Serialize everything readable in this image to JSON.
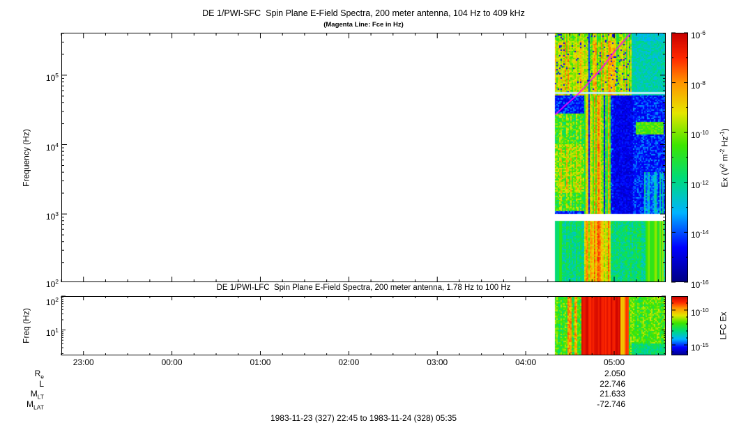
{
  "footer": "1983-11-23 (327) 22:45 to 1983-11-24 (328) 05:35",
  "palette": {
    "description": "rainbow spectrogram colormap, low to high",
    "stops": [
      [
        0.0,
        "#000082"
      ],
      [
        0.14,
        "#0000ff"
      ],
      [
        0.28,
        "#00b4ff"
      ],
      [
        0.42,
        "#00dc78"
      ],
      [
        0.55,
        "#3ce600"
      ],
      [
        0.68,
        "#e6e600"
      ],
      [
        0.8,
        "#ff9600"
      ],
      [
        0.9,
        "#ff2800"
      ],
      [
        1.0,
        "#c80000"
      ]
    ]
  },
  "chart_data": [
    {
      "type": "heatmap",
      "id": "sfc",
      "title": "DE 1/PWI-SFC  Spin Plane E-Field Spectra, 200 meter antenna, 104 Hz to 409 kHz",
      "subtitle": "(Magenta Line: Fce in Hz)",
      "ylabel": "Frequency (Hz)",
      "y_axis": {
        "scale": "log",
        "unit": "Hz",
        "min": 104,
        "max": 409000,
        "tick_exponents": [
          2,
          3,
          4,
          5
        ],
        "tick_labels": [
          "10^2",
          "10^3",
          "10^4",
          "10^5"
        ]
      },
      "x_axis": {
        "start_label": "22:45",
        "end_label": "05:35",
        "range_hours": [
          22.75,
          29.5833
        ],
        "tick_hours": [
          23,
          24,
          25,
          26,
          27,
          28,
          29
        ],
        "tick_labels": [
          "23:00",
          "00:00",
          "01:00",
          "02:00",
          "03:00",
          "04:00",
          "05:00"
        ],
        "minor_step_hours": 0.25
      },
      "colorbar": {
        "label_text": "Ex (V^2 m^-2 Hz^-1)",
        "label_parts": [
          [
            "t",
            "Ex (V"
          ],
          [
            "s",
            "2"
          ],
          [
            "t",
            " m"
          ],
          [
            "s",
            "-2"
          ],
          [
            "t",
            " Hz"
          ],
          [
            "s",
            "-1"
          ],
          [
            "t",
            ")"
          ]
        ],
        "tick_exponents": [
          -6,
          -8,
          -10,
          -12,
          -14,
          -16
        ],
        "max_exp": -6,
        "min_exp": -16
      },
      "data_start_hour": 28.3333,
      "data_end_hour": 29.5833,
      "data_gap_log_hz": [
        2.9,
        3.0
      ],
      "narrow_band_line_hz": 56000,
      "fce_line": {
        "color": "#ff00ff",
        "points": [
          [
            28.3333,
            27000
          ],
          [
            28.45,
            37000
          ],
          [
            28.5833,
            52000
          ],
          [
            28.8333,
            115000
          ],
          [
            29.0,
            215000
          ],
          [
            29.19,
            409000
          ]
        ]
      },
      "features": [
        "No data plotted from 22:45 until about 04:20 (blank white region)",
        "Broadband electric-field emissions 04:20-05:35 spanning ~100 Hz to 409 kHz",
        "Intense vertical burst structures about 04:40-05:00 (yellow/orange streaks)",
        "Bright emission region above ~50 kHz from 04:20 to about 05:10",
        "Narrow persistent horizontal line near 56 kHz across the data interval",
        "White instrument gap band near 0.8-1 kHz",
        "Magenta electron cyclotron frequency (Fce) line rising from ~27 kHz at 04:20 past 409 kHz at ~05:11"
      ]
    },
    {
      "type": "heatmap",
      "id": "lfc",
      "title": "DE 1/PWI-LFC  Spin Plane E-Field Spectra, 200 meter antenna, 1.78 Hz to 100 Hz",
      "ylabel": "Freq (Hz)",
      "y_axis": {
        "scale": "log",
        "unit": "Hz",
        "min": 1.78,
        "max": 100,
        "tick_exponents": [
          1,
          2
        ],
        "tick_labels": [
          "10^1",
          "10^2"
        ]
      },
      "colorbar": {
        "label": "LFC Ex",
        "tick_exponents": [
          -10,
          -15
        ],
        "max_exp": -8,
        "min_exp": -16.5
      },
      "data_start_hour": 28.3333,
      "data_end_hour": 29.5833,
      "features": [
        "Moderate broadband emissions (green/yellow) throughout 04:20-05:35",
        "Very intense burst (red) about 04:38-04:58 across 2-100 Hz",
        "Weaker blue-green region at lowest frequencies after ~05:15"
      ]
    }
  ],
  "orbit_rows": [
    {
      "label_main": "R",
      "label_sub": "e",
      "value": "2.050"
    },
    {
      "label_main": "L",
      "label_sub": "",
      "value": "22.746"
    },
    {
      "label_main": "M",
      "label_sub": "LT",
      "value": "21.633"
    },
    {
      "label_main": "M",
      "label_sub": "LAT",
      "value": "-72.746"
    }
  ]
}
